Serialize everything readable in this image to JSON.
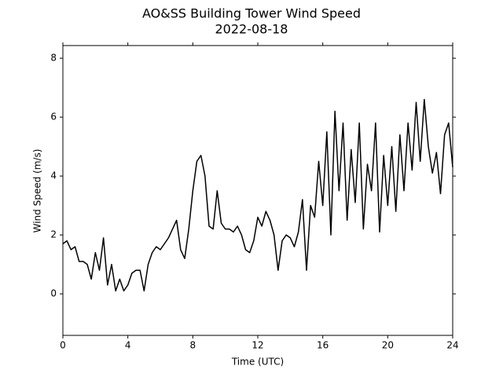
{
  "chart_data": {
    "type": "line",
    "title": "AO&SS Building Tower Wind Speed",
    "subtitle": "2022-08-18",
    "x_label": "Time (UTC)",
    "y_label": "Wind Speed (m/s)",
    "xlim": [
      0,
      24
    ],
    "ylim": [
      -1.41,
      8.43
    ],
    "xticks": [
      0,
      4,
      8,
      12,
      16,
      20,
      24
    ],
    "yticks": [
      0,
      2,
      4,
      6,
      8
    ],
    "series": [
      {
        "color": "#000000",
        "x": [
          0,
          0.25,
          0.5,
          0.75,
          1,
          1.25,
          1.5,
          1.75,
          2,
          2.25,
          2.5,
          2.75,
          3,
          3.25,
          3.5,
          3.75,
          4,
          4.25,
          4.5,
          4.75,
          5,
          5.25,
          5.5,
          5.75,
          6,
          6.25,
          6.5,
          6.75,
          7,
          7.25,
          7.5,
          7.75,
          8,
          8.25,
          8.5,
          8.75,
          9,
          9.25,
          9.5,
          9.75,
          10,
          10.25,
          10.5,
          10.75,
          11,
          11.25,
          11.5,
          11.75,
          12,
          12.25,
          12.5,
          12.75,
          13,
          13.25,
          13.5,
          13.75,
          14,
          14.25,
          14.5,
          14.75,
          15,
          15.25,
          15.5,
          15.75,
          16,
          16.25,
          16.5,
          16.75,
          17,
          17.25,
          17.5,
          17.75,
          18,
          18.25,
          18.5,
          18.75,
          19,
          19.25,
          19.5,
          19.75,
          20,
          20.25,
          20.5,
          20.75,
          21,
          21.25,
          21.5,
          21.75,
          22,
          22.25,
          22.5,
          22.75,
          23,
          23.25,
          23.5,
          23.75,
          24
        ],
        "values": [
          1.7,
          1.8,
          1.5,
          1.6,
          1.1,
          1.1,
          1.0,
          0.5,
          1.4,
          0.8,
          1.9,
          0.3,
          1.0,
          0.1,
          0.5,
          0.1,
          0.3,
          0.7,
          0.8,
          0.8,
          0.1,
          1.0,
          1.4,
          1.6,
          1.5,
          1.7,
          1.9,
          2.2,
          2.5,
          1.5,
          1.2,
          2.2,
          3.5,
          4.5,
          4.7,
          4.0,
          2.3,
          2.2,
          3.5,
          2.4,
          2.2,
          2.2,
          2.1,
          2.3,
          2.0,
          1.5,
          1.4,
          1.8,
          2.6,
          2.3,
          2.8,
          2.5,
          2.0,
          0.8,
          1.8,
          2.0,
          1.9,
          1.6,
          2.1,
          3.2,
          0.8,
          3.0,
          2.6,
          4.5,
          3.0,
          5.5,
          2.0,
          6.2,
          3.5,
          5.8,
          2.5,
          4.9,
          3.1,
          5.8,
          2.2,
          4.4,
          3.5,
          5.8,
          2.1,
          4.7,
          3.0,
          5.0,
          2.8,
          5.4,
          3.5,
          5.8,
          4.2,
          6.5,
          4.5,
          6.6,
          5.0,
          4.1,
          4.8,
          3.4,
          5.4,
          5.8,
          4.3
        ]
      }
    ]
  }
}
